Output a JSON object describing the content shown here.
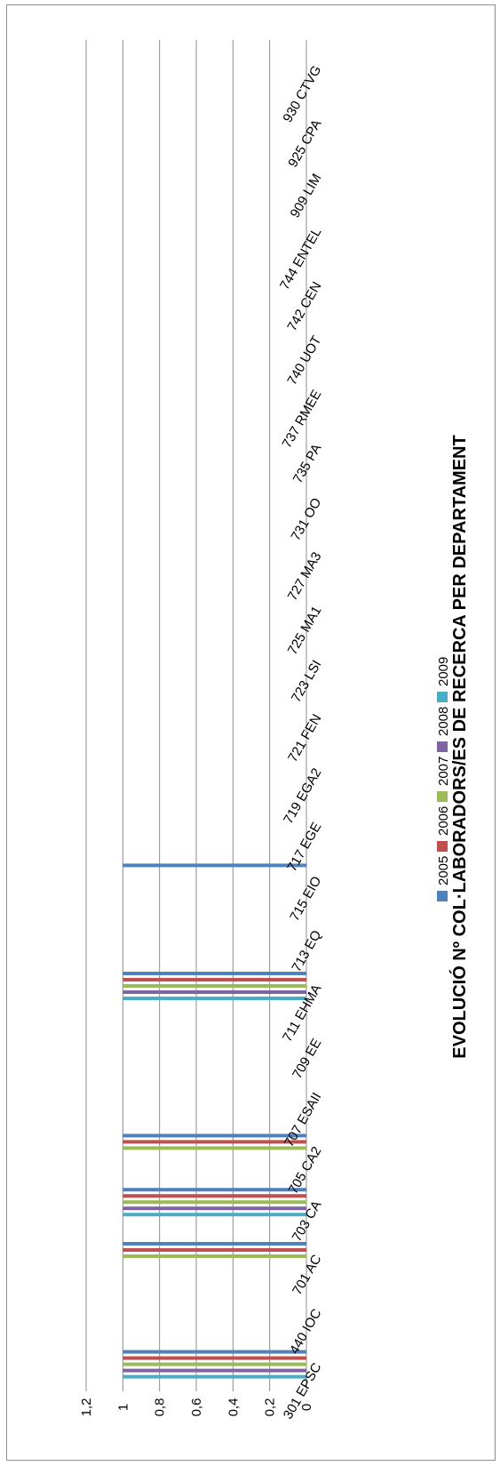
{
  "chart_data": {
    "type": "bar",
    "title": "EVOLUCIÓ Nº COL·LABORADORS/ES  DE RECERCA PER DEPARTAMENT",
    "xlabel": "",
    "ylabel": "",
    "ylim": [
      0,
      1.2
    ],
    "yticks": [
      "0",
      "0,2",
      "0,4",
      "0,6",
      "0,8",
      "1",
      "1,2"
    ],
    "grid": true,
    "legend_position": "bottom",
    "categories": [
      "301 EPSC",
      "440 IOC",
      "701 AC",
      "703 CA",
      "705 CA2",
      "707 ESAII",
      "709 EE",
      "711 EHMA",
      "713 EQ",
      "715 EIO",
      "717 EGE",
      "719 EGA2",
      "721 FEN",
      "723 LSI",
      "725 MA1",
      "727 MA3",
      "731 OO",
      "735 PA",
      "737 RMEE",
      "740 UOT",
      "742 CEN",
      "744 ENTEL",
      "909 LIM",
      "925 CPA",
      "930 CTVG"
    ],
    "series": [
      {
        "name": "2005",
        "color": "#4F81BD",
        "values": [
          1,
          0,
          1,
          1,
          1,
          0,
          0,
          1,
          0,
          1,
          0,
          0,
          0,
          0,
          0,
          0,
          0,
          0,
          0,
          0,
          0,
          0,
          0,
          0,
          0
        ]
      },
      {
        "name": "2006",
        "color": "#C0504D",
        "values": [
          1,
          0,
          1,
          1,
          1,
          0,
          0,
          1,
          0,
          0,
          0,
          0,
          0,
          0,
          0,
          0,
          0,
          0,
          0,
          0,
          0,
          0,
          0,
          0,
          0
        ]
      },
      {
        "name": "2007",
        "color": "#9BBB59",
        "values": [
          1,
          0,
          1,
          1,
          1,
          0,
          0,
          1,
          0,
          0,
          0,
          0,
          0,
          0,
          0,
          0,
          0,
          0,
          0,
          0,
          0,
          0,
          0,
          0,
          0
        ]
      },
      {
        "name": "2008",
        "color": "#8064A2",
        "values": [
          1,
          0,
          0,
          1,
          0,
          0,
          0,
          1,
          0,
          0,
          0,
          0,
          0,
          0,
          0,
          0,
          0,
          0,
          0,
          0,
          0,
          0,
          0,
          0,
          0
        ]
      },
      {
        "name": "2009",
        "color": "#4BACC6",
        "values": [
          1,
          0,
          0,
          1,
          0,
          0,
          0,
          1,
          0,
          0,
          0,
          0,
          0,
          0,
          0,
          0,
          0,
          0,
          0,
          0,
          0,
          0,
          0,
          0,
          0
        ]
      }
    ]
  }
}
